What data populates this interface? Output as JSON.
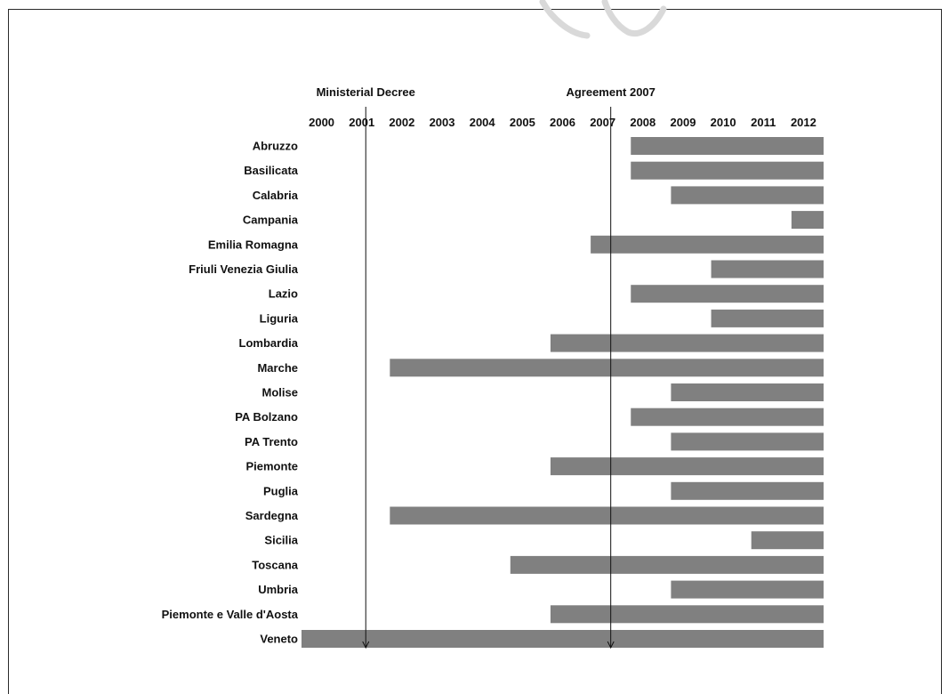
{
  "colors": {
    "bar": "#808080",
    "text": "#111111",
    "frame": "#2a2a2a",
    "watermark": "#d9d9d9"
  },
  "chart_data": {
    "type": "bar",
    "orientation": "horizontal-timeline",
    "title": "",
    "xlabel": "",
    "ylabel": "",
    "x_ticks": [
      "2000",
      "2001",
      "2002",
      "2003",
      "2004",
      "2005",
      "2006",
      "2007",
      "2008",
      "2009",
      "2010",
      "2011",
      "2012"
    ],
    "x_range": [
      1999.5,
      2012.5
    ],
    "grid": false,
    "categories": [
      "Abruzzo",
      "Basilicata",
      "Calabria",
      "Campania",
      "Emilia Romagna",
      "Friuli Venezia Giulia",
      "Lazio",
      "Liguria",
      "Lombardia",
      "Marche",
      "Molise",
      "PA Bolzano",
      "PA Trento",
      "Piemonte",
      "Puglia",
      "Sardegna",
      "Sicilia",
      "Toscana",
      "Umbria",
      "Piemonte e Valle d'Aosta",
      "Veneto"
    ],
    "start_years": [
      2007.7,
      2007.7,
      2008.7,
      2011.7,
      2006.7,
      2009.7,
      2007.7,
      2009.7,
      2005.7,
      2001.7,
      2008.7,
      2007.7,
      2008.7,
      2005.7,
      2008.7,
      2001.7,
      2010.7,
      2004.7,
      2008.7,
      2005.7,
      1999.5
    ],
    "end_year": 2012.5,
    "annotations": [
      {
        "label": "Ministerial Decree",
        "year": 2001.1
      },
      {
        "label": "Agreement 2007",
        "year": 2007.2
      }
    ]
  }
}
